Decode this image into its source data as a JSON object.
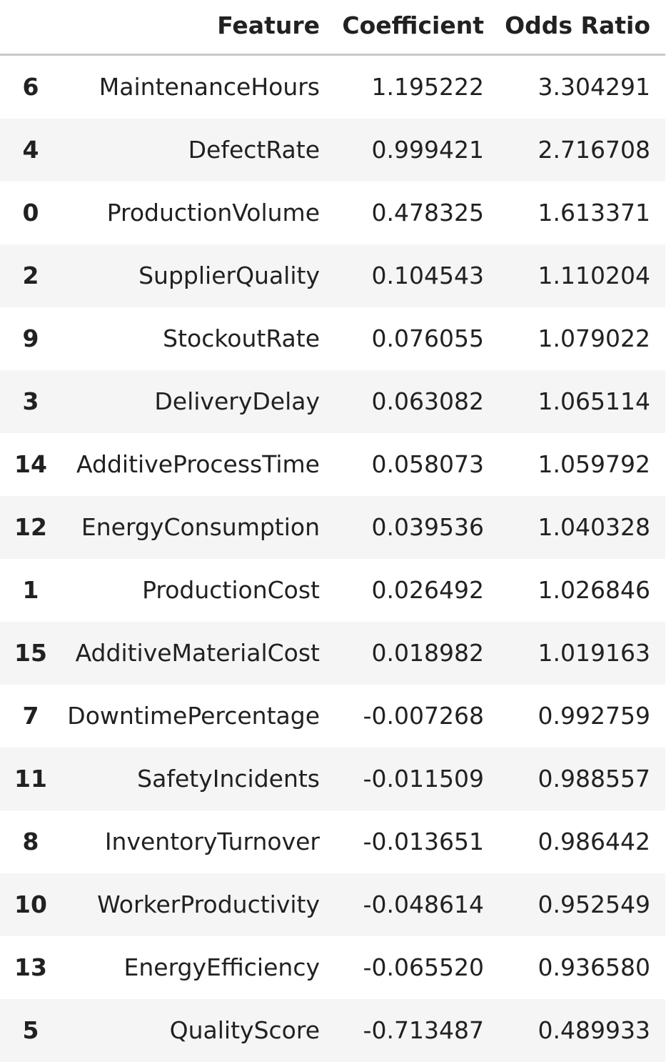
{
  "table": {
    "columns": {
      "index": "",
      "feature": "Feature",
      "coefficient": "Coefficient",
      "odds_ratio": "Odds Ratio"
    },
    "rows": [
      {
        "index": "6",
        "feature": "MaintenanceHours",
        "coefficient": "1.195222",
        "odds_ratio": "3.304291"
      },
      {
        "index": "4",
        "feature": "DefectRate",
        "coefficient": "0.999421",
        "odds_ratio": "2.716708"
      },
      {
        "index": "0",
        "feature": "ProductionVolume",
        "coefficient": "0.478325",
        "odds_ratio": "1.613371"
      },
      {
        "index": "2",
        "feature": "SupplierQuality",
        "coefficient": "0.104543",
        "odds_ratio": "1.110204"
      },
      {
        "index": "9",
        "feature": "StockoutRate",
        "coefficient": "0.076055",
        "odds_ratio": "1.079022"
      },
      {
        "index": "3",
        "feature": "DeliveryDelay",
        "coefficient": "0.063082",
        "odds_ratio": "1.065114"
      },
      {
        "index": "14",
        "feature": "AdditiveProcessTime",
        "coefficient": "0.058073",
        "odds_ratio": "1.059792"
      },
      {
        "index": "12",
        "feature": "EnergyConsumption",
        "coefficient": "0.039536",
        "odds_ratio": "1.040328"
      },
      {
        "index": "1",
        "feature": "ProductionCost",
        "coefficient": "0.026492",
        "odds_ratio": "1.026846"
      },
      {
        "index": "15",
        "feature": "AdditiveMaterialCost",
        "coefficient": "0.018982",
        "odds_ratio": "1.019163"
      },
      {
        "index": "7",
        "feature": "DowntimePercentage",
        "coefficient": "-0.007268",
        "odds_ratio": "0.992759"
      },
      {
        "index": "11",
        "feature": "SafetyIncidents",
        "coefficient": "-0.011509",
        "odds_ratio": "0.988557"
      },
      {
        "index": "8",
        "feature": "InventoryTurnover",
        "coefficient": "-0.013651",
        "odds_ratio": "0.986442"
      },
      {
        "index": "10",
        "feature": "WorkerProductivity",
        "coefficient": "-0.048614",
        "odds_ratio": "0.952549"
      },
      {
        "index": "13",
        "feature": "EnergyEfficiency",
        "coefficient": "-0.065520",
        "odds_ratio": "0.936580"
      },
      {
        "index": "5",
        "feature": "QualityScore",
        "coefficient": "-0.713487",
        "odds_ratio": "0.489933"
      }
    ]
  }
}
